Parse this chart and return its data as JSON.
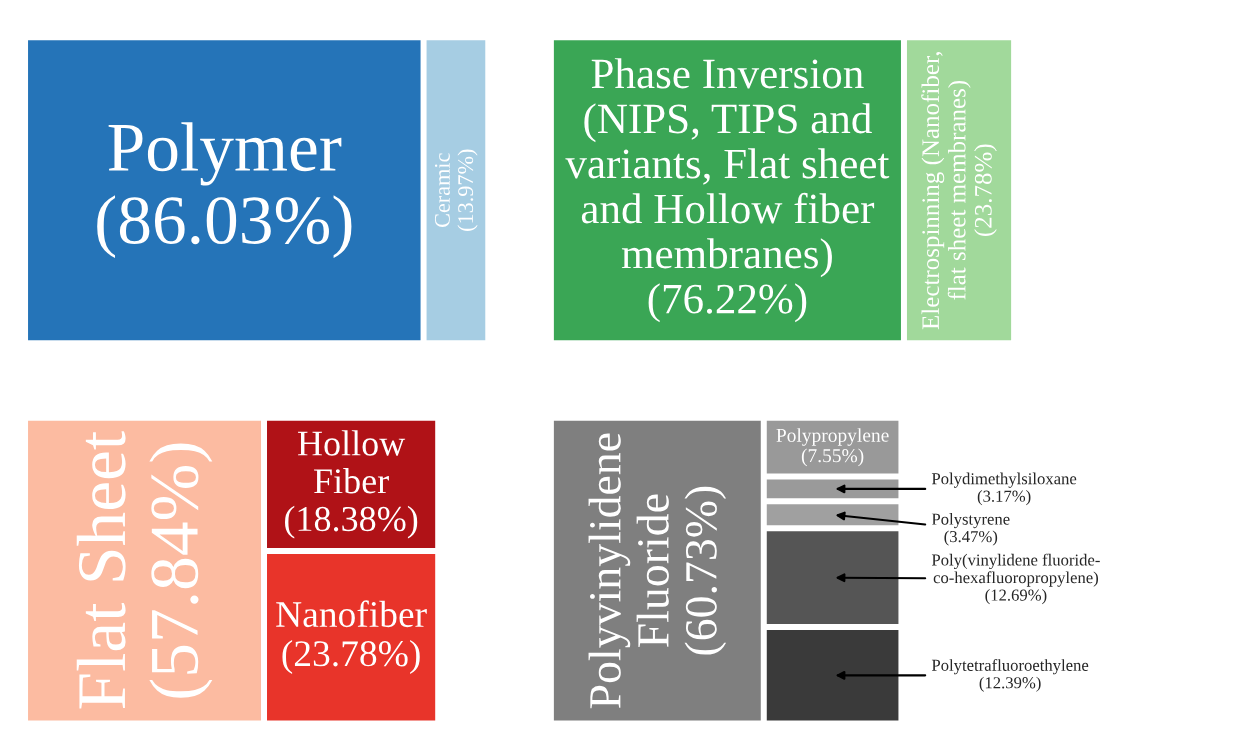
{
  "chart_data": [
    {
      "type": "other",
      "categories": [
        "Polymer",
        "Ceramic"
      ],
      "values": [
        86.03,
        13.97
      ],
      "value_labels": [
        "(86.03%)",
        "(13.97%)"
      ],
      "colors": [
        "#2574b8",
        "#a6cde3"
      ]
    },
    {
      "type": "other",
      "categories": [
        "Phase Inversion\n(NIPS, TIPS and\nvariants, Flat sheet\nand Hollow fiber\nmembranes)",
        "Electrospinning (Nanofiber,\nflat sheet membranes)"
      ],
      "values": [
        76.22,
        23.78
      ],
      "value_labels": [
        "(76.22%)",
        "(23.78%)"
      ],
      "colors": [
        "#3aa655",
        "#a1d99b"
      ]
    },
    {
      "type": "other",
      "categories": [
        "Flat Sheet",
        "Hollow\nFiber",
        "Nanofiber"
      ],
      "values": [
        57.84,
        18.38,
        23.78
      ],
      "value_labels": [
        "(57.84%)",
        "(18.38%)",
        "(23.78%)"
      ],
      "colors": [
        "#fcbba1",
        "#b01217",
        "#e8342a"
      ]
    },
    {
      "type": "other",
      "categories": [
        "Polyvinylidene\nFluoride",
        "Polypropylene",
        "Polydimethylsiloxane",
        "Polystyrene",
        "Poly(vinylidene fluoride-\nco-hexafluoropropylene)",
        "Polytetrafluoroethylene"
      ],
      "values": [
        60.73,
        7.55,
        3.17,
        3.47,
        12.69,
        12.39
      ],
      "value_labels": [
        "(60.73%)",
        "(7.55%)",
        "(3.17%)",
        "(3.47%)",
        "(12.69%)",
        "(12.39%)"
      ],
      "colors": [
        "#7f7f7f",
        "#999999",
        "#9a9a9a",
        "#a0a0a0",
        "#555555",
        "#3a3a3a"
      ]
    }
  ]
}
